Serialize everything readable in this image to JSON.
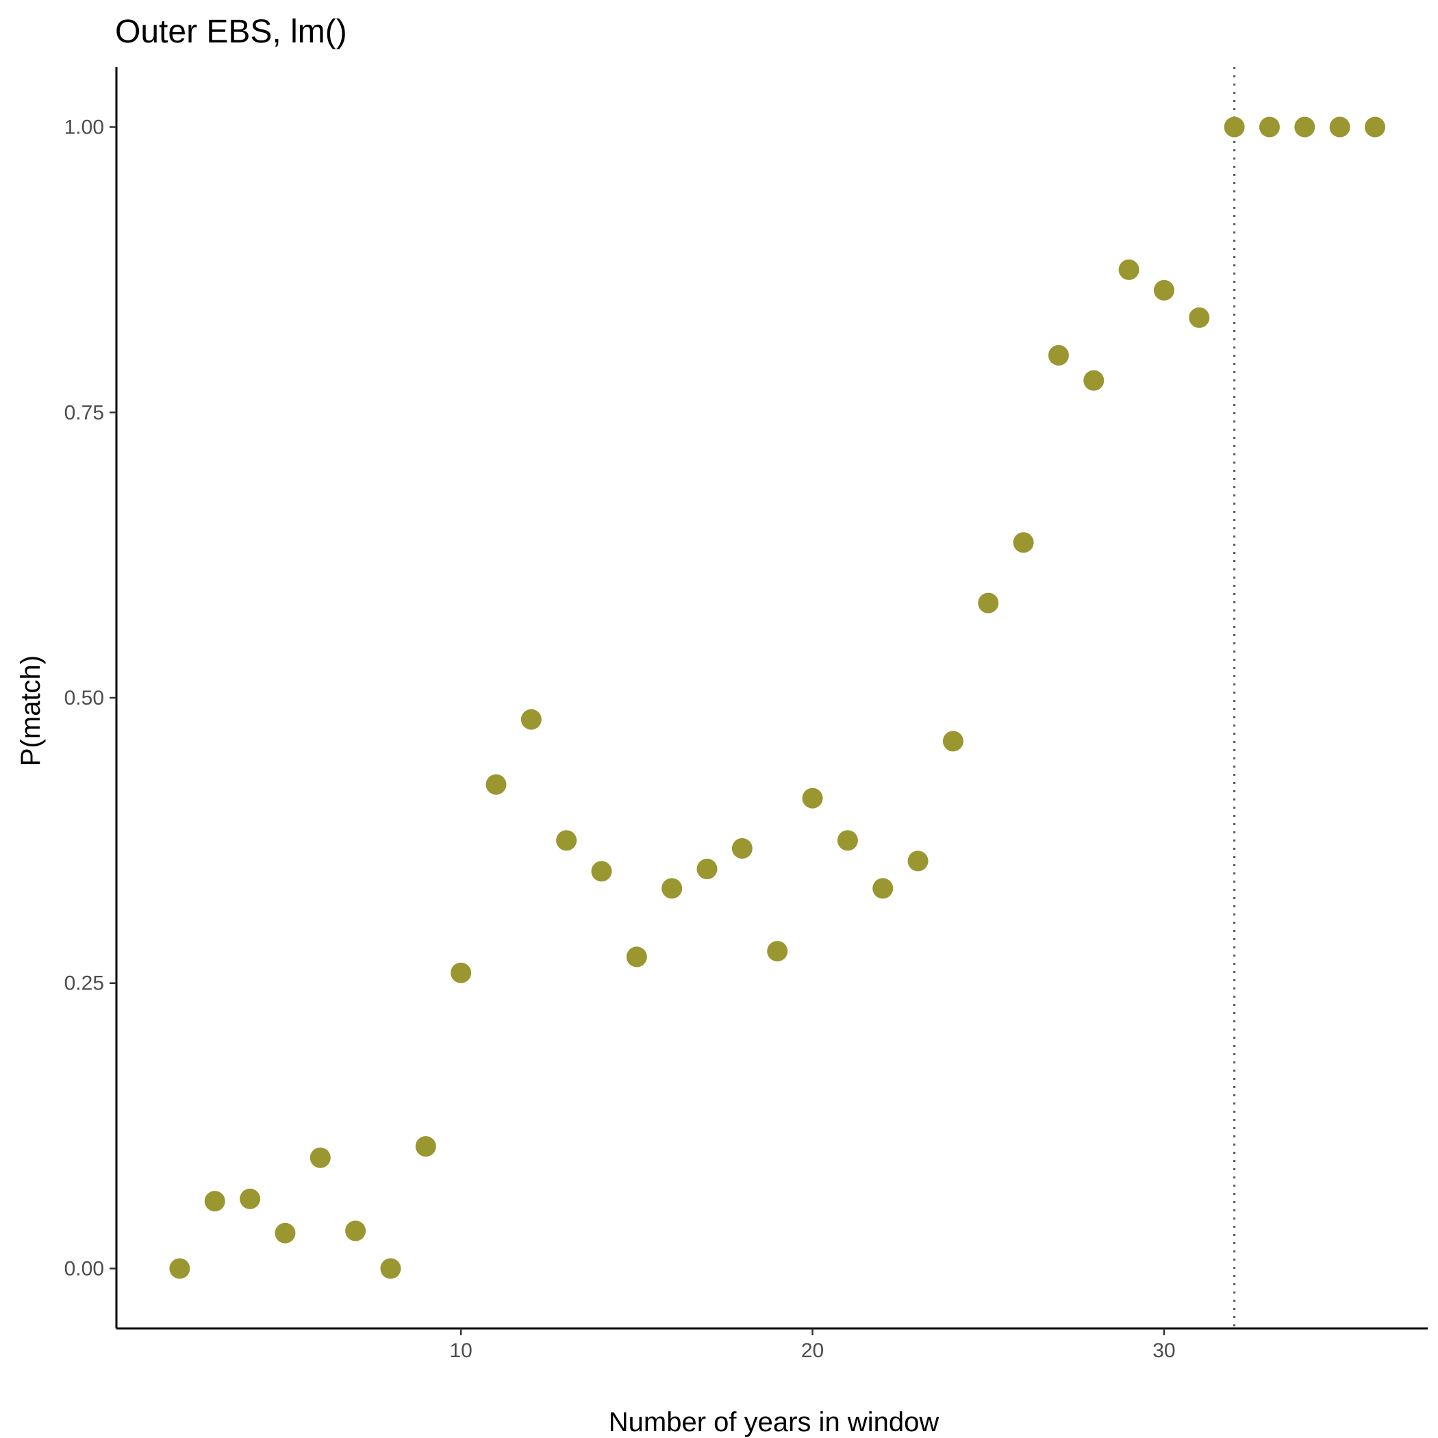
{
  "chart_data": {
    "type": "scatter",
    "title": "Outer EBS, lm()",
    "xlabel": "Number of years in window",
    "ylabel": "P(match)",
    "xlim": [
      0.2,
      37.5
    ],
    "ylim": [
      -0.0525,
      1.0525
    ],
    "xticks": [
      10,
      20,
      30
    ],
    "xtick_labels": [
      "10",
      "20",
      "30"
    ],
    "yticks": [
      0,
      0.25,
      0.5,
      0.75,
      1
    ],
    "ytick_labels": [
      "0.00",
      "0.25",
      "0.50",
      "0.75",
      "1.00"
    ],
    "grid": false,
    "legend": "none",
    "point_color": "#9a9630",
    "vline_x": 32,
    "x": [
      2,
      3,
      4,
      5,
      6,
      7,
      8,
      9,
      10,
      11,
      12,
      13,
      14,
      15,
      16,
      17,
      18,
      19,
      20,
      21,
      22,
      23,
      24,
      25,
      26,
      27,
      28,
      29,
      30,
      31,
      32,
      33,
      34,
      35,
      36
    ],
    "y": [
      0.0,
      0.059,
      0.061,
      0.031,
      0.097,
      0.033,
      0.0,
      0.107,
      0.259,
      0.424,
      0.481,
      0.375,
      0.348,
      0.273,
      0.333,
      0.35,
      0.368,
      0.278,
      0.412,
      0.375,
      0.333,
      0.357,
      0.462,
      0.583,
      0.636,
      0.8,
      0.778,
      0.875,
      0.857,
      0.833,
      1.0,
      1.0,
      1.0,
      1.0,
      1.0
    ]
  }
}
